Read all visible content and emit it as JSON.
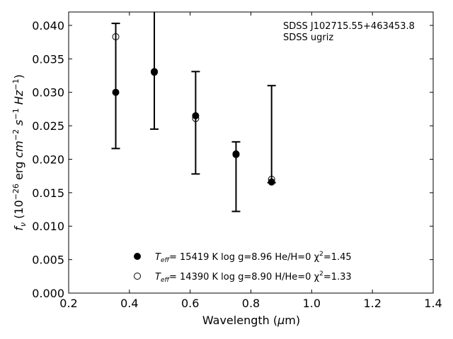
{
  "chart_data": {
    "type": "scatter",
    "title": "",
    "xlabel": "Wavelength (μm)",
    "ylabel": "f_ν (10^-26 erg cm^-2 s^-1 Hz^-1)",
    "xlim": [
      0.2,
      1.4
    ],
    "ylim": [
      0.0,
      0.042
    ],
    "xticks": [
      0.2,
      0.4,
      0.6,
      0.8,
      1.0,
      1.2,
      1.4
    ],
    "xtick_labels": [
      "0.2",
      "0.4",
      "0.6",
      "0.8",
      "1.0",
      "1.2",
      "1.4"
    ],
    "yticks": [
      0.0,
      0.005,
      0.01,
      0.015,
      0.02,
      0.025,
      0.03,
      0.035,
      0.04
    ],
    "ytick_labels": [
      "0.000",
      "0.005",
      "0.010",
      "0.015",
      "0.020",
      "0.025",
      "0.030",
      "0.035",
      "0.040"
    ],
    "grid": false,
    "legend_position": "bottom-center",
    "annotations": [
      "SDSS J102715.55+463453.8",
      "SDSS ugriz"
    ],
    "observed": {
      "x": [
        0.355,
        0.482,
        0.618,
        0.751,
        0.868
      ],
      "y": [
        0.03,
        0.033,
        0.0263,
        0.0208,
        0.0166
      ],
      "yerr_low": [
        0.0216,
        0.0245,
        0.0178,
        0.0122,
        0.0165
      ],
      "yerr_high": [
        0.0403,
        0.042,
        0.0331,
        0.0226,
        0.031
      ]
    },
    "series": [
      {
        "name": "T_eff= 15419 K  log g=8.96  He/H=0  χ²=1.45",
        "marker": "filled-circle",
        "x": [
          0.355,
          0.482,
          0.618,
          0.751,
          0.868
        ],
        "y": [
          0.03,
          0.0331,
          0.0265,
          0.0208,
          0.0166
        ]
      },
      {
        "name": "T_eff= 14390 K  log g=8.90  H/He=0  χ²=1.33",
        "marker": "open-circle",
        "x": [
          0.355,
          0.482,
          0.618,
          0.751,
          0.868
        ],
        "y": [
          0.0383,
          0.033,
          0.0261,
          0.0207,
          0.017
        ]
      }
    ],
    "legend": [
      {
        "prefix": "T",
        "sub": "eff",
        "mid": "= 15419 K  log g=8.96  He/H=0  χ",
        "sup": "2",
        "tail": "=1.45"
      },
      {
        "prefix": "T",
        "sub": "eff",
        "mid": "= 14390 K  log g=8.90  H/He=0  χ",
        "sup": "2",
        "tail": "=1.33"
      }
    ],
    "colors": {
      "axis": "#000000",
      "marker": "#000000",
      "background": "#ffffff"
    }
  }
}
